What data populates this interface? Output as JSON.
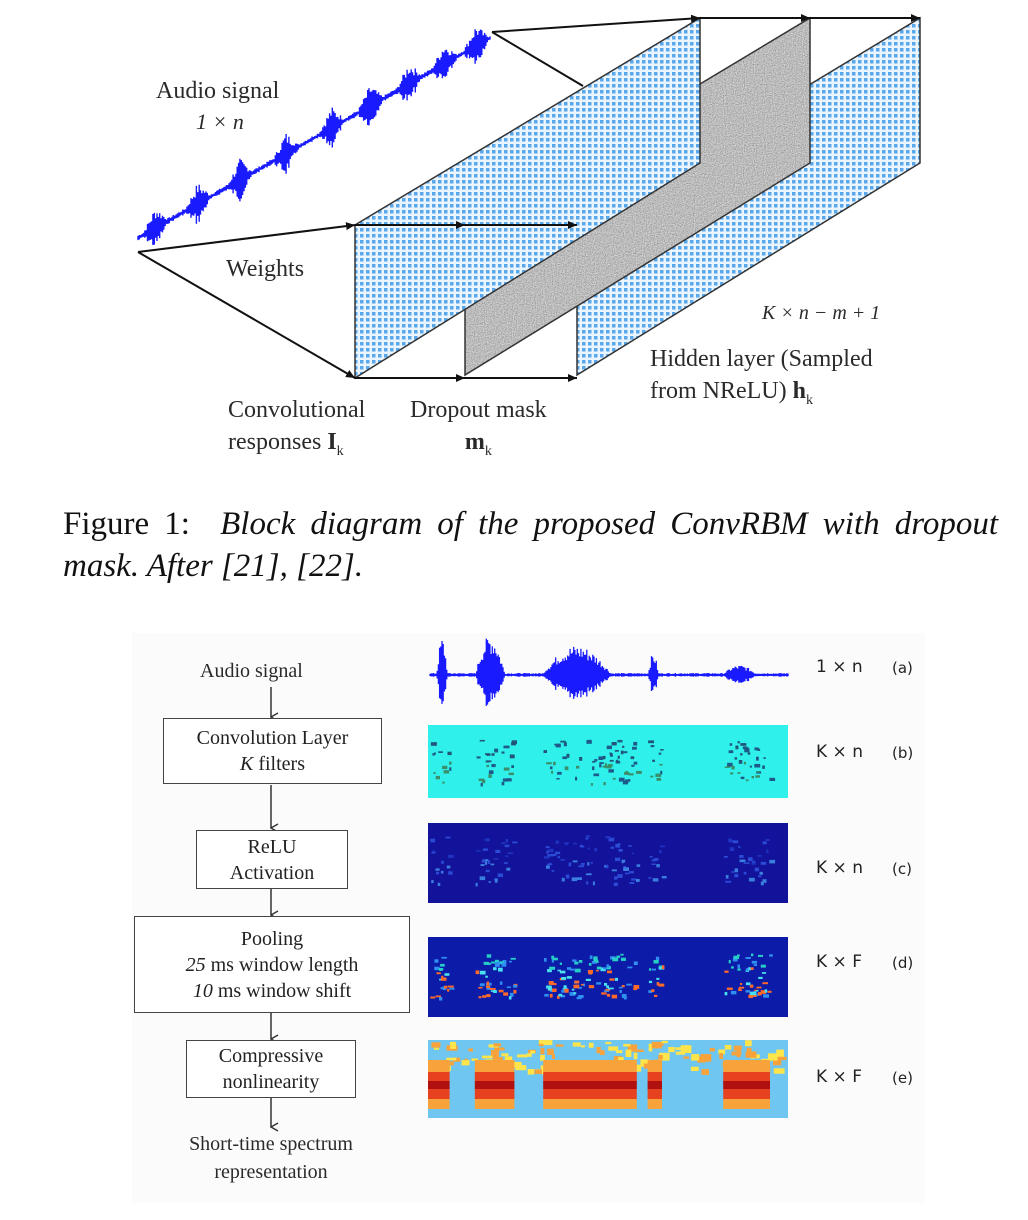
{
  "figure1": {
    "audio_label": "Audio signal",
    "audio_dim": "1 × n",
    "weights_label": "Weights",
    "conv_label_line1": "Convolutional",
    "conv_label_line2": "responses",
    "conv_symbol": "I",
    "conv_sub": "k",
    "dropout_label": "Dropout mask",
    "dropout_symbol": "m",
    "dropout_sub": "k",
    "hidden_dim": "K × n − m + 1",
    "hidden_label_line1": "Hidden layer (Sampled",
    "hidden_label_line2": "from NReLU)",
    "hidden_symbol": "h",
    "hidden_sub": "k"
  },
  "caption": {
    "prefix": "Figure 1:",
    "text": "Block diagram of the proposed ConvRBM with dropout mask. After [21], [22]."
  },
  "figure2": {
    "input_label": "Audio signal",
    "conv_box_line1": "Convolution Layer",
    "conv_box_k": "K",
    "conv_box_rest": " filters",
    "relu_line1": "ReLU",
    "relu_line2": "Activation",
    "pool_line1": "Pooling",
    "pool_line2_num": "25",
    "pool_line2_rest": " ms window length",
    "pool_line3_num": "10",
    "pool_line3_rest": " ms window shift",
    "comp_line1": "Compressive",
    "comp_line2": "nonlinearity",
    "output_line1": "Short-time spectrum",
    "output_line2": "representation",
    "rows": [
      {
        "dim": "1 × n",
        "tag": "(a)"
      },
      {
        "dim": "K × n",
        "tag": "(b)"
      },
      {
        "dim": "K × n",
        "tag": "(c)"
      },
      {
        "dim": "K × F",
        "tag": "(d)"
      },
      {
        "dim": "K × F",
        "tag": "(e)"
      }
    ]
  },
  "colors": {
    "waveform": "#1a1aff",
    "grid_panel": "#9fd0f5",
    "panel_b_bg": "#2ff0ea",
    "panel_c_bg": "#12129a",
    "panel_d_bg": "#0d1ca8",
    "panel_e_bg": "#6fc6f0"
  }
}
